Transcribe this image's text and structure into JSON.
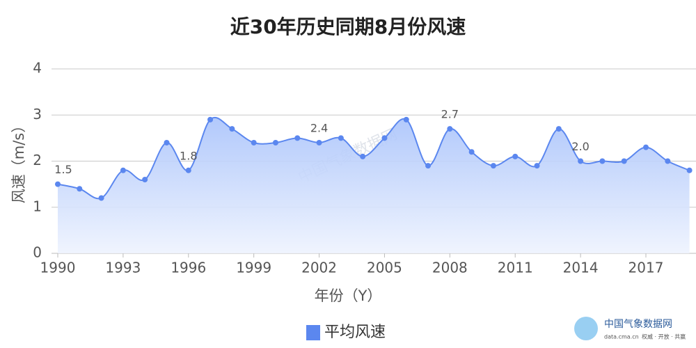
{
  "chart_data": {
    "type": "line",
    "title": "近30年历史同期8月份风速",
    "x_label": "年份（Y）",
    "y_label": "风速（m/s）",
    "x": [
      1990,
      1991,
      1992,
      1993,
      1994,
      1995,
      1996,
      1997,
      1998,
      1999,
      2000,
      2001,
      2002,
      2003,
      2004,
      2005,
      2006,
      2007,
      2008,
      2009,
      2010,
      2011,
      2012,
      2013,
      2014,
      2015,
      2016,
      2017,
      2018,
      2019
    ],
    "series": [
      {
        "name": "平均风速",
        "color": "#5b87ef",
        "values": [
          1.5,
          1.4,
          1.2,
          1.8,
          1.6,
          2.4,
          1.8,
          2.9,
          2.7,
          2.4,
          2.4,
          2.5,
          2.4,
          2.5,
          2.1,
          2.5,
          2.9,
          1.9,
          2.7,
          2.2,
          1.9,
          2.1,
          1.9,
          2.7,
          2.0,
          2.0,
          2.0,
          2.3,
          2.0,
          1.8
        ],
        "value_labels": [
          "1.5",
          null,
          null,
          null,
          null,
          null,
          "1.8",
          null,
          null,
          null,
          null,
          null,
          "2.4",
          null,
          null,
          null,
          null,
          null,
          "2.7",
          null,
          null,
          null,
          null,
          null,
          "2.0",
          null,
          null,
          null,
          null,
          null
        ]
      }
    ],
    "xlim": [
      1990,
      2019
    ],
    "xticks": [
      1990,
      1993,
      1996,
      1999,
      2002,
      2005,
      2008,
      2011,
      2014,
      2017
    ],
    "ylim": [
      0,
      4
    ],
    "yticks": [
      0,
      1,
      2,
      3,
      4
    ],
    "grid": true,
    "area": true,
    "legend": "bottom",
    "watermark": "中国气象数据网",
    "source": {
      "name": "中国气象数据网",
      "url": "data.cma.cn",
      "slogan": "权威 · 开放 · 共赢"
    }
  }
}
